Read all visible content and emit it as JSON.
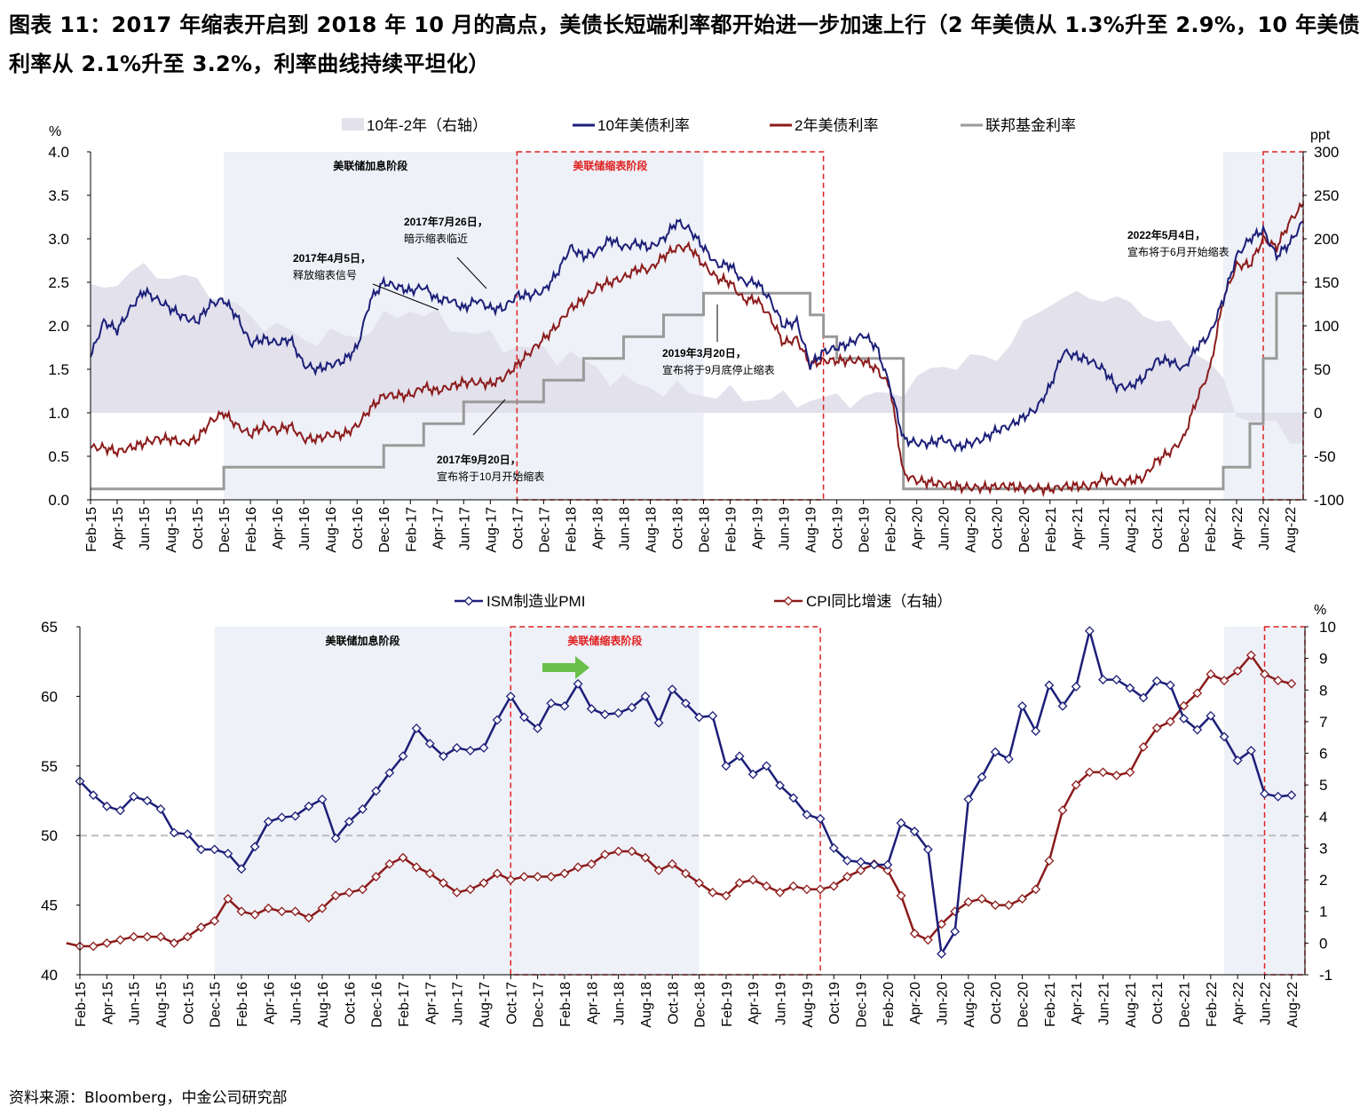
{
  "title": "图表 11：2017 年缩表开启到 2018 年 10 月的高点，美债长短端利率都开始进一步加速上行（2 年美债从 1.3%升至 2.9%，10 年美债利率从 2.1%升至 3.2%，利率曲线持续平坦化）",
  "source": "资料来源：Bloomberg，中金公司研究部",
  "colors": {
    "navy": "#1c1f78",
    "darkred": "#8c1b1b",
    "gray": "#9a9a9a",
    "spread": "#e2e1ec",
    "shade": "#eef1f7",
    "redbox": "#e02020"
  },
  "chart_data": [
    {
      "type": "line",
      "y_unit_left": "%",
      "y_unit_right": "ppt",
      "ylim_left": [
        0,
        4
      ],
      "ylim_right": [
        -100,
        300
      ],
      "x_ticks": [
        "Feb-15",
        "Apr-15",
        "Jun-15",
        "Aug-15",
        "Oct-15",
        "Dec-15",
        "Feb-16",
        "Apr-16",
        "Jun-16",
        "Aug-16",
        "Oct-16",
        "Dec-16",
        "Feb-17",
        "Apr-17",
        "Jun-17",
        "Aug-17",
        "Oct-17",
        "Dec-17",
        "Feb-18",
        "Apr-18",
        "Jun-18",
        "Aug-18",
        "Oct-18",
        "Dec-18",
        "Feb-19",
        "Apr-19",
        "Jun-19",
        "Aug-19",
        "Oct-19",
        "Dec-19",
        "Feb-20",
        "Apr-20",
        "Jun-20",
        "Aug-20",
        "Oct-20",
        "Dec-20",
        "Feb-21",
        "Apr-21",
        "Jun-21",
        "Aug-21",
        "Oct-21",
        "Dec-21",
        "Feb-22",
        "Apr-22",
        "Jun-22",
        "Aug-22"
      ],
      "y_ticks_left": [
        "0.0",
        "0.5",
        "1.0",
        "1.5",
        "2.0",
        "2.5",
        "3.0",
        "3.5",
        "4.0"
      ],
      "y_ticks_right": [
        "-100",
        "-50",
        "0",
        "50",
        "100",
        "150",
        "200",
        "250",
        "300"
      ],
      "legend": [
        "10年-2年（右轴）",
        "10年美债利率",
        "2年美债利率",
        "联邦基金利率"
      ],
      "phases": [
        {
          "label": "美联储加息阶段",
          "start": "2015-12",
          "end": "2018-12",
          "style": "shade"
        },
        {
          "label": "美联储缩表阶段",
          "start": "2017-10",
          "end": "2019-09",
          "style": "redbox"
        },
        {
          "label": "",
          "start": "2022-03",
          "end": "2022-09",
          "style": "shade"
        },
        {
          "label": "",
          "start": "2022-06",
          "end": "2022-09",
          "style": "redbox"
        }
      ],
      "annotations": [
        {
          "date": "2017年4月5日，",
          "text": "释放缩表信号"
        },
        {
          "date": "2017年7月26日，",
          "text": "暗示缩表临近"
        },
        {
          "date": "2017年9月20日，",
          "text": "宣布将于10月开始缩表"
        },
        {
          "date": "2019年3月20日，",
          "text": "宣布将于9月底停止缩表"
        },
        {
          "date": "2022年5月4日，",
          "text": "宣布将于6月开始缩表"
        }
      ],
      "series": [
        {
          "name": "10年美债利率",
          "color": "#1c1f78",
          "months": [
            "2015-02",
            "2015-03",
            "2015-04",
            "2015-05",
            "2015-06",
            "2015-07",
            "2015-08",
            "2015-09",
            "2015-10",
            "2015-11",
            "2015-12",
            "2016-01",
            "2016-02",
            "2016-03",
            "2016-04",
            "2016-05",
            "2016-06",
            "2016-07",
            "2016-08",
            "2016-09",
            "2016-10",
            "2016-11",
            "2016-12",
            "2017-01",
            "2017-02",
            "2017-03",
            "2017-04",
            "2017-05",
            "2017-06",
            "2017-07",
            "2017-08",
            "2017-09",
            "2017-10",
            "2017-11",
            "2017-12",
            "2018-01",
            "2018-02",
            "2018-03",
            "2018-04",
            "2018-05",
            "2018-06",
            "2018-07",
            "2018-08",
            "2018-09",
            "2018-10",
            "2018-11",
            "2018-12",
            "2019-01",
            "2019-02",
            "2019-03",
            "2019-04",
            "2019-05",
            "2019-06",
            "2019-07",
            "2019-08",
            "2019-09",
            "2019-10",
            "2019-11",
            "2019-12",
            "2020-01",
            "2020-02",
            "2020-03",
            "2020-04",
            "2020-05",
            "2020-06",
            "2020-07",
            "2020-08",
            "2020-09",
            "2020-10",
            "2020-11",
            "2020-12",
            "2021-01",
            "2021-02",
            "2021-03",
            "2021-04",
            "2021-05",
            "2021-06",
            "2021-07",
            "2021-08",
            "2021-09",
            "2021-10",
            "2021-11",
            "2021-12",
            "2022-01",
            "2022-02",
            "2022-03",
            "2022-04",
            "2022-05",
            "2022-06",
            "2022-07",
            "2022-08",
            "2022-09"
          ],
          "values": [
            1.65,
            2.05,
            1.95,
            2.2,
            2.4,
            2.3,
            2.2,
            2.1,
            2.05,
            2.25,
            2.3,
            2.1,
            1.8,
            1.85,
            1.8,
            1.85,
            1.55,
            1.5,
            1.55,
            1.6,
            1.75,
            2.3,
            2.5,
            2.45,
            2.4,
            2.45,
            2.3,
            2.3,
            2.2,
            2.3,
            2.2,
            2.2,
            2.35,
            2.35,
            2.4,
            2.6,
            2.9,
            2.8,
            2.85,
            3.0,
            2.9,
            2.95,
            2.9,
            3.0,
            3.2,
            3.1,
            2.9,
            2.7,
            2.7,
            2.5,
            2.5,
            2.3,
            2.0,
            2.05,
            1.55,
            1.7,
            1.75,
            1.8,
            1.9,
            1.75,
            1.3,
            0.7,
            0.65,
            0.65,
            0.7,
            0.6,
            0.65,
            0.7,
            0.8,
            0.85,
            0.95,
            1.05,
            1.3,
            1.7,
            1.65,
            1.6,
            1.5,
            1.3,
            1.3,
            1.4,
            1.6,
            1.6,
            1.5,
            1.75,
            1.9,
            2.3,
            2.8,
            3.0,
            3.1,
            2.8,
            2.95,
            3.2
          ]
        },
        {
          "name": "2年美债利率",
          "color": "#8c1b1b",
          "months": [
            "2015-02",
            "2015-03",
            "2015-04",
            "2015-05",
            "2015-06",
            "2015-07",
            "2015-08",
            "2015-09",
            "2015-10",
            "2015-11",
            "2015-12",
            "2016-01",
            "2016-02",
            "2016-03",
            "2016-04",
            "2016-05",
            "2016-06",
            "2016-07",
            "2016-08",
            "2016-09",
            "2016-10",
            "2016-11",
            "2016-12",
            "2017-01",
            "2017-02",
            "2017-03",
            "2017-04",
            "2017-05",
            "2017-06",
            "2017-07",
            "2017-08",
            "2017-09",
            "2017-10",
            "2017-11",
            "2017-12",
            "2018-01",
            "2018-02",
            "2018-03",
            "2018-04",
            "2018-05",
            "2018-06",
            "2018-07",
            "2018-08",
            "2018-09",
            "2018-10",
            "2018-11",
            "2018-12",
            "2019-01",
            "2019-02",
            "2019-03",
            "2019-04",
            "2019-05",
            "2019-06",
            "2019-07",
            "2019-08",
            "2019-09",
            "2019-10",
            "2019-11",
            "2019-12",
            "2020-01",
            "2020-02",
            "2020-03",
            "2020-04",
            "2020-05",
            "2020-06",
            "2020-07",
            "2020-08",
            "2020-09",
            "2020-10",
            "2020-11",
            "2020-12",
            "2021-01",
            "2021-02",
            "2021-03",
            "2021-04",
            "2021-05",
            "2021-06",
            "2021-07",
            "2021-08",
            "2021-09",
            "2021-10",
            "2021-11",
            "2021-12",
            "2022-01",
            "2022-02",
            "2022-03",
            "2022-04",
            "2022-05",
            "2022-06",
            "2022-07",
            "2022-08",
            "2022-09"
          ],
          "values": [
            0.6,
            0.6,
            0.55,
            0.6,
            0.65,
            0.7,
            0.7,
            0.65,
            0.7,
            0.9,
            1.0,
            0.85,
            0.75,
            0.85,
            0.8,
            0.85,
            0.7,
            0.7,
            0.75,
            0.75,
            0.85,
            1.05,
            1.2,
            1.2,
            1.2,
            1.3,
            1.25,
            1.3,
            1.35,
            1.35,
            1.33,
            1.4,
            1.55,
            1.7,
            1.85,
            2.0,
            2.2,
            2.3,
            2.45,
            2.5,
            2.55,
            2.65,
            2.65,
            2.8,
            2.9,
            2.9,
            2.7,
            2.55,
            2.5,
            2.3,
            2.3,
            2.1,
            1.8,
            1.85,
            1.55,
            1.6,
            1.6,
            1.6,
            1.6,
            1.5,
            1.3,
            0.3,
            0.22,
            0.2,
            0.18,
            0.15,
            0.14,
            0.14,
            0.15,
            0.16,
            0.13,
            0.13,
            0.12,
            0.15,
            0.16,
            0.15,
            0.25,
            0.2,
            0.22,
            0.25,
            0.45,
            0.55,
            0.7,
            1.15,
            1.5,
            2.3,
            2.7,
            2.7,
            3.0,
            2.9,
            3.2,
            3.4
          ]
        },
        {
          "name": "联邦基金利率",
          "color": "#9a9a9a",
          "steps": [
            [
              "2015-02",
              0.125
            ],
            [
              "2015-12",
              0.375
            ],
            [
              "2016-12",
              0.625
            ],
            [
              "2017-03",
              0.875
            ],
            [
              "2017-06",
              1.125
            ],
            [
              "2017-12",
              1.375
            ],
            [
              "2018-03",
              1.625
            ],
            [
              "2018-06",
              1.875
            ],
            [
              "2018-09",
              2.125
            ],
            [
              "2018-12",
              2.375
            ],
            [
              "2019-08",
              2.125
            ],
            [
              "2019-09",
              1.875
            ],
            [
              "2019-10",
              1.625
            ],
            [
              "2020-03",
              0.125
            ],
            [
              "2022-03",
              0.375
            ],
            [
              "2022-05",
              0.875
            ],
            [
              "2022-06",
              1.625
            ],
            [
              "2022-07",
              2.375
            ],
            [
              "2022-09",
              2.375
            ]
          ]
        },
        {
          "name": "10年-2年（右轴）",
          "color": "#e2e1ec",
          "months": [
            "2015-02",
            "2015-06",
            "2015-10",
            "2016-02",
            "2016-06",
            "2016-10",
            "2017-02",
            "2017-06",
            "2017-10",
            "2018-02",
            "2018-06",
            "2018-10",
            "2019-02",
            "2019-06",
            "2019-10",
            "2020-02",
            "2020-06",
            "2020-10",
            "2021-02",
            "2021-06",
            "2021-10",
            "2022-02",
            "2022-04",
            "2022-06",
            "2022-09"
          ],
          "values": [
            140,
            165,
            150,
            110,
            85,
            90,
            120,
            95,
            75,
            65,
            35,
            25,
            20,
            15,
            15,
            20,
            55,
            65,
            130,
            135,
            110,
            60,
            0,
            -10,
            -35
          ]
        }
      ]
    },
    {
      "type": "line",
      "y_unit_right": "%",
      "ylim_left": [
        40,
        65
      ],
      "ylim_right": [
        -1,
        10
      ],
      "x_ticks": [
        "Feb-15",
        "Apr-15",
        "Jun-15",
        "Aug-15",
        "Oct-15",
        "Dec-15",
        "Feb-16",
        "Apr-16",
        "Jun-16",
        "Aug-16",
        "Oct-16",
        "Dec-16",
        "Feb-17",
        "Apr-17",
        "Jun-17",
        "Aug-17",
        "Oct-17",
        "Dec-17",
        "Feb-18",
        "Apr-18",
        "Jun-18",
        "Aug-18",
        "Oct-18",
        "Dec-18",
        "Feb-19",
        "Apr-19",
        "Jun-19",
        "Aug-19",
        "Oct-19",
        "Dec-19",
        "Feb-20",
        "Apr-20",
        "Jun-20",
        "Aug-20",
        "Oct-20",
        "Dec-20",
        "Feb-21",
        "Apr-21",
        "Jun-21",
        "Aug-21",
        "Oct-21",
        "Dec-21",
        "Feb-22",
        "Apr-22",
        "Jun-22",
        "Aug-22"
      ],
      "y_ticks_left": [
        "40",
        "45",
        "50",
        "55",
        "60",
        "65"
      ],
      "y_ticks_right": [
        "-1",
        "0",
        "1",
        "2",
        "3",
        "4",
        "5",
        "6",
        "7",
        "8",
        "9",
        "10"
      ],
      "reference_line": 50,
      "legend": [
        "ISM制造业PMI",
        "CPI同比增速（右轴）"
      ],
      "phases": [
        {
          "label": "美联储加息阶段",
          "start": "2015-12",
          "end": "2018-12",
          "style": "shade"
        },
        {
          "label": "美联储缩表阶段",
          "start": "2017-10",
          "end": "2019-09",
          "style": "redbox"
        },
        {
          "label": "",
          "start": "2022-03",
          "end": "2022-09",
          "style": "shade"
        },
        {
          "label": "",
          "start": "2022-06",
          "end": "2022-09",
          "style": "redbox"
        }
      ],
      "series": [
        {
          "name": "ISM制造业PMI",
          "color": "#1c1f78",
          "marker": "diamond",
          "values": [
            53.9,
            52.9,
            52.1,
            51.8,
            52.8,
            52.5,
            51.9,
            50.2,
            50.1,
            49.0,
            49.0,
            48.7,
            47.6,
            49.2,
            51.0,
            51.3,
            51.4,
            52.1,
            52.6,
            49.8,
            51.0,
            51.9,
            53.2,
            54.5,
            55.7,
            57.7,
            56.6,
            55.7,
            56.3,
            56.1,
            56.3,
            58.3,
            60.0,
            58.5,
            57.7,
            59.5,
            59.3,
            60.9,
            59.1,
            58.7,
            58.8,
            59.2,
            60.0,
            58.1,
            60.5,
            59.5,
            58.5,
            58.6,
            55.0,
            55.7,
            54.4,
            55.0,
            53.6,
            52.7,
            51.5,
            51.2,
            49.1,
            48.2,
            48.1,
            47.9,
            47.9,
            50.9,
            50.3,
            49.0,
            41.5,
            43.1,
            52.6,
            54.2,
            56.0,
            55.5,
            59.3,
            57.5,
            60.8,
            59.3,
            60.7,
            64.7,
            61.2,
            61.2,
            60.6,
            59.9,
            61.1,
            60.8,
            58.4,
            57.6,
            58.6,
            57.1,
            55.4,
            56.1,
            53.0,
            52.8,
            52.9
          ],
          "months_start": "2015-02"
        },
        {
          "name": "CPI同比增速（右轴）",
          "color": "#8c1b1b",
          "marker": "diamond",
          "values": [
            0.0,
            -0.1,
            -0.1,
            0.0,
            0.1,
            0.2,
            0.2,
            0.2,
            0.0,
            0.2,
            0.5,
            0.7,
            1.4,
            1.0,
            0.9,
            1.1,
            1.0,
            1.0,
            0.8,
            1.1,
            1.5,
            1.6,
            1.7,
            2.1,
            2.5,
            2.7,
            2.4,
            2.2,
            1.9,
            1.6,
            1.7,
            1.9,
            2.2,
            2.0,
            2.1,
            2.1,
            2.1,
            2.2,
            2.4,
            2.5,
            2.8,
            2.9,
            2.9,
            2.7,
            2.3,
            2.5,
            2.2,
            1.9,
            1.6,
            1.5,
            1.9,
            2.0,
            1.8,
            1.6,
            1.8,
            1.7,
            1.7,
            1.8,
            2.1,
            2.3,
            2.5,
            2.3,
            1.5,
            0.3,
            0.1,
            0.6,
            1.0,
            1.3,
            1.4,
            1.2,
            1.2,
            1.4,
            1.7,
            2.6,
            4.2,
            5.0,
            5.4,
            5.4,
            5.3,
            5.4,
            6.2,
            6.8,
            7.0,
            7.5,
            7.9,
            8.5,
            8.3,
            8.6,
            9.1,
            8.5,
            8.3,
            8.2
          ],
          "months_start": "2015-01"
        }
      ]
    }
  ]
}
